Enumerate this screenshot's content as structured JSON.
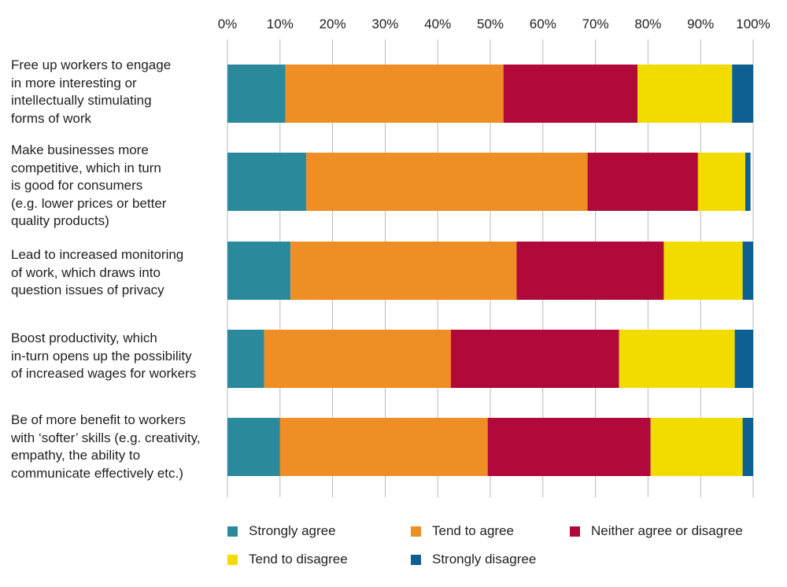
{
  "chart_data": {
    "type": "bar",
    "orientation": "horizontal",
    "stacked": true,
    "categories": [
      "Free up workers to engage in more interesting or intellectually stimulating forms of work",
      "Make businesses more competitive, which in turn is good for consumers (e.g. lower prices or better quality products)",
      "Lead to increased monitoring of work, which draws into question issues of privacy",
      "Boost productivity, which in-turn opens up the possibility of increased wages for workers",
      "Be of more benefit to workers with ‘softer’ skills (e.g. creativity, empathy, the ability to communicate effectively etc.)"
    ],
    "category_lines": [
      [
        "Free up workers to engage",
        "in more interesting or",
        "intellectually stimulating",
        "forms of work"
      ],
      [
        "Make businesses more",
        "competitive, which in turn",
        "is good for consumers",
        "(e.g. lower prices or better",
        "quality products)"
      ],
      [
        "Lead to increased monitoring",
        "of work, which draws into",
        "question issues of privacy"
      ],
      [
        "Boost productivity, which",
        "in-turn opens up the possibility",
        "of increased wages for workers"
      ],
      [
        "Be of more benefit to workers",
        "with ‘softer’ skills (e.g. creativity,",
        "empathy, the ability to",
        "communicate effectively etc.)"
      ]
    ],
    "series": [
      {
        "name": "Strongly agree",
        "color": "#2a8a9c",
        "values": [
          11,
          15,
          12,
          7,
          10
        ]
      },
      {
        "name": "Tend to agree",
        "color": "#ee8e24",
        "values": [
          41.5,
          53.5,
          43,
          35.5,
          39.5
        ]
      },
      {
        "name": "Neither agree or disagree",
        "color": "#b10a3a",
        "values": [
          25.5,
          21,
          28,
          32,
          31
        ]
      },
      {
        "name": "Tend to disagree",
        "color": "#f2dc00",
        "values": [
          18,
          9,
          15,
          22,
          17.5
        ]
      },
      {
        "name": "Strongly disagree",
        "color": "#0e5f92",
        "values": [
          4,
          1,
          2,
          3.5,
          2
        ]
      }
    ],
    "xlim": [
      0,
      100
    ],
    "xticks": [
      "0%",
      "10%",
      "20%",
      "30%",
      "40%",
      "50%",
      "60%",
      "70%",
      "80%",
      "90%",
      "100%"
    ],
    "grid": true,
    "legend_position": "bottom",
    "title": "",
    "xlabel": "",
    "ylabel": ""
  }
}
